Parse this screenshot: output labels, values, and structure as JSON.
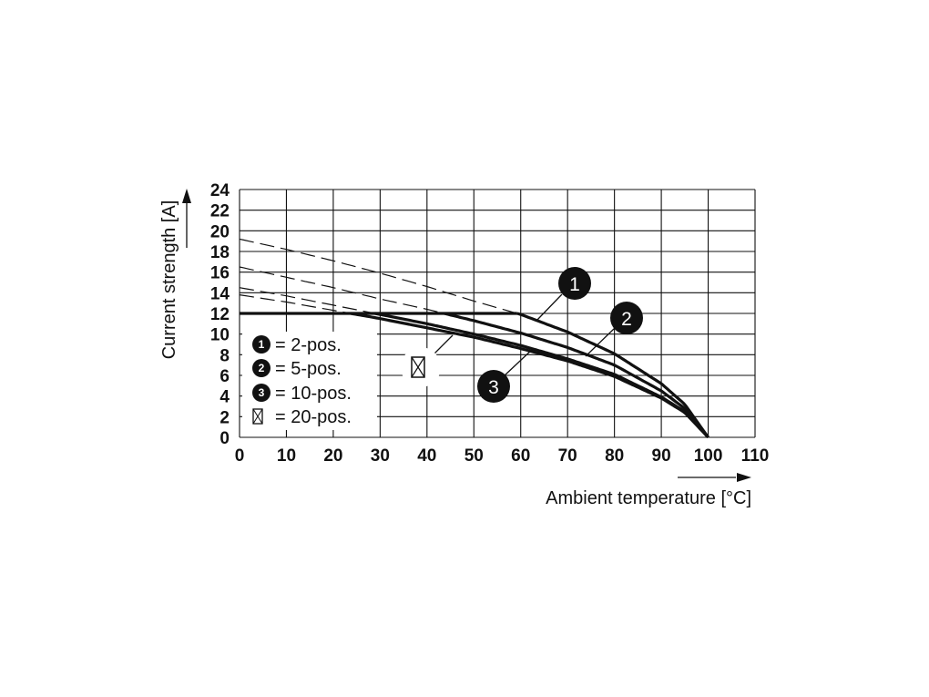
{
  "chart_data": {
    "type": "line",
    "xlabel": "Ambient temperature [°C]",
    "ylabel": "Current strength [A]",
    "xlim": [
      0,
      110
    ],
    "ylim": [
      0,
      24
    ],
    "x_ticks": [
      0,
      10,
      20,
      30,
      40,
      50,
      60,
      70,
      80,
      90,
      100,
      110
    ],
    "y_ticks": [
      0,
      2,
      4,
      6,
      8,
      10,
      12,
      14,
      16,
      18,
      20,
      22,
      24
    ],
    "grid": true,
    "current_limit": 12,
    "series": [
      {
        "name": "2-pos.",
        "callout": "1",
        "points": [
          [
            0,
            19.2
          ],
          [
            10,
            18.2
          ],
          [
            20,
            17.1
          ],
          [
            30,
            15.9
          ],
          [
            40,
            14.6
          ],
          [
            50,
            13.2
          ],
          [
            60,
            11.9
          ],
          [
            70,
            10.2
          ],
          [
            80,
            8.1
          ],
          [
            90,
            5.2
          ],
          [
            95,
            3.2
          ],
          [
            100,
            0
          ]
        ]
      },
      {
        "name": "5-pos.",
        "callout": "2",
        "points": [
          [
            0,
            16.5
          ],
          [
            10,
            15.5
          ],
          [
            20,
            14.5
          ],
          [
            30,
            13.4
          ],
          [
            40,
            12.4
          ],
          [
            50,
            11.3
          ],
          [
            60,
            10.1
          ],
          [
            70,
            8.7
          ],
          [
            80,
            7.0
          ],
          [
            90,
            4.5
          ],
          [
            95,
            2.8
          ],
          [
            100,
            0
          ]
        ]
      },
      {
        "name": "10-pos.",
        "callout": "3",
        "points": [
          [
            0,
            14.5
          ],
          [
            10,
            13.7
          ],
          [
            20,
            12.8
          ],
          [
            30,
            11.9
          ],
          [
            40,
            11.0
          ],
          [
            50,
            10.0
          ],
          [
            60,
            8.9
          ],
          [
            70,
            7.6
          ],
          [
            80,
            6.1
          ],
          [
            90,
            3.9
          ],
          [
            95,
            2.5
          ],
          [
            100,
            0
          ]
        ]
      },
      {
        "name": "20-pos.",
        "callout": "⊠",
        "points": [
          [
            0,
            13.8
          ],
          [
            10,
            13.1
          ],
          [
            20,
            12.3
          ],
          [
            30,
            11.5
          ],
          [
            40,
            10.6
          ],
          [
            50,
            9.7
          ],
          [
            60,
            8.6
          ],
          [
            70,
            7.4
          ],
          [
            80,
            5.9
          ],
          [
            90,
            3.8
          ],
          [
            95,
            2.4
          ],
          [
            100,
            0
          ]
        ]
      }
    ],
    "legend": [
      {
        "marker": "1",
        "text": "= 2-pos."
      },
      {
        "marker": "2",
        "text": "= 5-pos."
      },
      {
        "marker": "3",
        "text": "= 10-pos."
      },
      {
        "marker": "⊠",
        "text": "= 20-pos."
      }
    ]
  }
}
